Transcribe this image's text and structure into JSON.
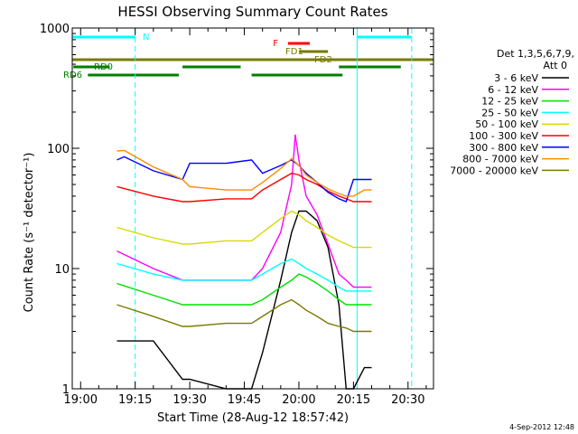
{
  "chart_data": {
    "type": "line",
    "title": "HESSI Observing Summary Count Rates",
    "xlabel": "Start Time (28-Aug-12 18:57:42)",
    "ylabel": "Count Rate (s⁻¹ detector⁻¹)",
    "yscale": "log",
    "ylim": [
      1,
      1000
    ],
    "xlim": [
      "18:57:42",
      "20:37:00"
    ],
    "x_ticks": [
      "19:00",
      "19:15",
      "19:30",
      "19:45",
      "20:00",
      "20:15",
      "20:30"
    ],
    "y_ticks": [
      "1",
      "10",
      "100",
      "1000"
    ],
    "legend_header": [
      "Det 1,3,5,6,7,9,",
      "Att 0"
    ],
    "legend_placement": "right",
    "timestamp": "4-Sep-2012 12:48",
    "series": [
      {
        "name": "3 - 6 keV",
        "color": "#000000",
        "x": [
          "19:10",
          "19:20",
          "19:28",
          "19:30",
          "19:40",
          "19:47",
          "19:50",
          "19:55",
          "19:58",
          "20:00",
          "20:02",
          "20:05",
          "20:08",
          "20:11",
          "20:13",
          "20:15",
          "20:18",
          "20:20"
        ],
        "values": [
          2.5,
          2.5,
          1.2,
          1.2,
          1,
          1,
          2,
          8,
          20,
          30,
          30,
          25,
          15,
          5,
          1,
          1,
          1.5,
          1.5
        ]
      },
      {
        "name": "6 - 12 keV",
        "color": "#ff00ff",
        "x": [
          "19:10",
          "19:20",
          "19:28",
          "19:30",
          "19:40",
          "19:47",
          "19:50",
          "19:55",
          "19:58",
          "19:59",
          "20:00",
          "20:02",
          "20:05",
          "20:08",
          "20:11",
          "20:13",
          "20:15",
          "20:18",
          "20:20"
        ],
        "values": [
          14,
          10,
          8,
          8,
          8,
          8,
          10,
          20,
          50,
          130,
          80,
          40,
          28,
          16,
          9,
          8,
          7,
          7,
          7
        ]
      },
      {
        "name": "12 - 25 keV",
        "color": "#00e000",
        "x": [
          "19:10",
          "19:20",
          "19:28",
          "19:30",
          "19:40",
          "19:47",
          "19:50",
          "19:55",
          "19:58",
          "20:00",
          "20:02",
          "20:05",
          "20:08",
          "20:11",
          "20:13",
          "20:15",
          "20:18",
          "20:20"
        ],
        "values": [
          7.5,
          6,
          5,
          5,
          5,
          5,
          5.5,
          7,
          8,
          9,
          8.5,
          7.5,
          6.5,
          5.5,
          5,
          5,
          5,
          5
        ]
      },
      {
        "name": "25 - 50 keV",
        "color": "#00ffff",
        "x": [
          "19:10",
          "19:20",
          "19:28",
          "19:30",
          "19:40",
          "19:47",
          "19:50",
          "19:55",
          "19:58",
          "20:00",
          "20:02",
          "20:05",
          "20:08",
          "20:11",
          "20:13",
          "20:15",
          "20:18",
          "20:20"
        ],
        "values": [
          11,
          9,
          8,
          8,
          8,
          8,
          9,
          11,
          12,
          11,
          10,
          9,
          8,
          7,
          6.5,
          6.5,
          6.5,
          6.5
        ]
      },
      {
        "name": "50 - 100 keV",
        "color": "#d8d800",
        "x": [
          "19:10",
          "19:20",
          "19:28",
          "19:30",
          "19:40",
          "19:47",
          "19:50",
          "19:55",
          "19:58",
          "20:00",
          "20:02",
          "20:05",
          "20:08",
          "20:11",
          "20:13",
          "20:15",
          "20:18",
          "20:20"
        ],
        "values": [
          22,
          18,
          16,
          16,
          17,
          17,
          20,
          26,
          30,
          28,
          25,
          22,
          19,
          17,
          16,
          15,
          15,
          15
        ]
      },
      {
        "name": "100 - 300 keV",
        "color": "#ff0000",
        "x": [
          "19:10",
          "19:20",
          "19:28",
          "19:30",
          "19:40",
          "19:47",
          "19:50",
          "19:55",
          "19:58",
          "20:00",
          "20:02",
          "20:05",
          "20:08",
          "20:11",
          "20:13",
          "20:15",
          "20:18",
          "20:20"
        ],
        "values": [
          48,
          40,
          36,
          36,
          38,
          38,
          45,
          55,
          62,
          60,
          55,
          50,
          44,
          40,
          38,
          36,
          36,
          36
        ]
      },
      {
        "name": "300 - 800 keV",
        "color": "#0000ff",
        "x": [
          "19:10",
          "19:12",
          "19:20",
          "19:28",
          "19:30",
          "19:40",
          "19:47",
          "19:50",
          "19:55",
          "19:58",
          "20:00",
          "20:02",
          "20:05",
          "20:08",
          "20:11",
          "20:13",
          "20:15",
          "20:18",
          "20:20"
        ],
        "values": [
          80,
          85,
          65,
          55,
          75,
          75,
          80,
          62,
          72,
          80,
          72,
          62,
          52,
          43,
          38,
          36,
          55,
          55,
          55
        ]
      },
      {
        "name": "800 - 7000 keV",
        "color": "#ff8c00",
        "x": [
          "19:10",
          "19:12",
          "19:20",
          "19:28",
          "19:30",
          "19:40",
          "19:47",
          "19:50",
          "19:55",
          "19:58",
          "20:00",
          "20:02",
          "20:05",
          "20:08",
          "20:11",
          "20:13",
          "20:15",
          "20:18",
          "20:20"
        ],
        "values": [
          95,
          96,
          70,
          55,
          48,
          45,
          45,
          52,
          68,
          82,
          72,
          60,
          52,
          46,
          42,
          40,
          40,
          45,
          45
        ]
      },
      {
        "name": "7000 - 20000 keV",
        "color": "#7a7a00",
        "x": [
          "19:10",
          "19:20",
          "19:28",
          "19:30",
          "19:40",
          "19:47",
          "19:50",
          "19:55",
          "19:58",
          "20:00",
          "20:02",
          "20:05",
          "20:08",
          "20:11",
          "20:13",
          "20:15",
          "20:18",
          "20:20"
        ],
        "values": [
          5,
          4,
          3.3,
          3.3,
          3.5,
          3.5,
          4,
          5,
          5.5,
          5,
          4.5,
          4,
          3.5,
          3.3,
          3.2,
          3,
          3,
          3
        ]
      }
    ],
    "intervals": [
      {
        "label": "N",
        "color": "#00ffff",
        "segments": [
          [
            "18:57:42",
            "19:15"
          ],
          [
            "20:16",
            "20:31"
          ]
        ]
      },
      {
        "label": "F",
        "color": "#ff0000",
        "segments": [
          [
            "19:57",
            "20:03"
          ]
        ]
      },
      {
        "label": "FD1",
        "color": "#7a7a00",
        "segments": [
          [
            "20:00",
            "20:08"
          ]
        ]
      },
      {
        "label": "FD2",
        "color": "#7a7a00",
        "segments": [
          [
            "18:57:42",
            "20:37:00"
          ]
        ]
      },
      {
        "label": "RD0",
        "color": "#008000",
        "segments": [
          [
            "18:58",
            "19:08"
          ],
          [
            "19:28",
            "19:44"
          ],
          [
            "20:11",
            "20:28"
          ]
        ]
      },
      {
        "label": "RD6",
        "color": "#008000",
        "segments": [
          [
            "19:02",
            "19:27"
          ],
          [
            "19:47",
            "20:12"
          ]
        ]
      }
    ],
    "vlines": [
      {
        "x": "19:15",
        "style": "dashed",
        "color": "#00ffff"
      },
      {
        "x": "20:16",
        "style": "solid",
        "color": "#00ffff"
      },
      {
        "x": "20:31",
        "style": "dashed",
        "color": "#00ffff"
      }
    ]
  }
}
